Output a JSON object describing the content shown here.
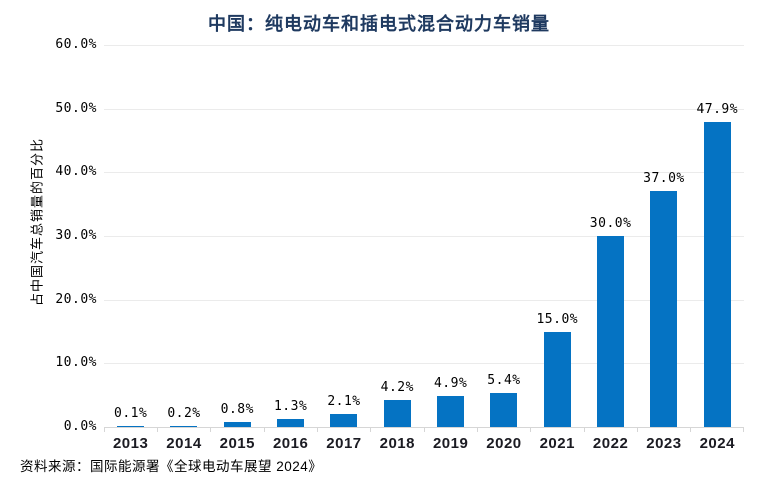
{
  "source_note": "资料来源：国际能源署《全球电动车展望 2024》",
  "colors": {
    "bar": "#0573c3",
    "title_text": "#1f3a60",
    "gridline": "#ebebeb",
    "axis_line": "#d6d6d6"
  },
  "chart_data": {
    "type": "bar",
    "title": "中国：纯电动车和插电式混合动力车销量",
    "xlabel": "",
    "ylabel": "占中国汽车总销量的百分比",
    "categories": [
      "2013",
      "2014",
      "2015",
      "2016",
      "2017",
      "2018",
      "2019",
      "2020",
      "2021",
      "2022",
      "2023",
      "2024"
    ],
    "values": [
      0.1,
      0.2,
      0.8,
      1.3,
      2.1,
      4.2,
      4.9,
      5.4,
      15.0,
      30.0,
      37.0,
      47.9
    ],
    "data_labels": [
      "0.1%",
      "0.2%",
      "0.8%",
      "1.3%",
      "2.1%",
      "4.2%",
      "4.9%",
      "5.4%",
      "15.0%",
      "30.0%",
      "37.0%",
      "47.9%"
    ],
    "ylim": [
      0,
      60
    ],
    "ytick_step": 10,
    "ytick_labels": [
      "0.0%",
      "10.0%",
      "20.0%",
      "30.0%",
      "40.0%",
      "50.0%",
      "60.0%"
    ],
    "grid": true,
    "legend": "none"
  }
}
